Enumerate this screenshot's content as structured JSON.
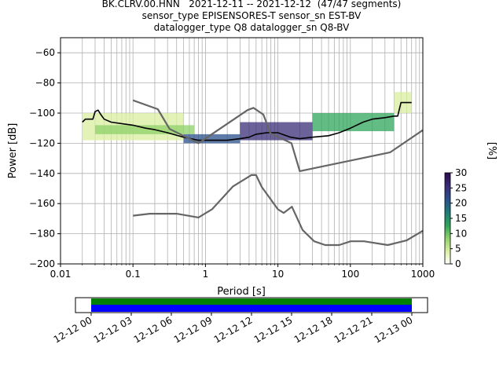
{
  "title": {
    "line1": "BK.CLRV.00.HNN   2021-12-11 -- 2021-12-12  (47/47 segments)",
    "line2": "sensor_type EPISENSORES-T sensor_sn EST-BV",
    "line3": "datalogger_type Q8 datalogger_sn Q8-BV"
  },
  "chart_data": [
    {
      "type": "heatmap",
      "xlabel": "Period [s]",
      "ylabel": "Power [dB]",
      "xscale": "log",
      "xlim": [
        0.01,
        1000
      ],
      "ylim": [
        -200,
        -50
      ],
      "xticks": [
        0.01,
        0.1,
        1,
        10,
        100,
        1000
      ],
      "xtick_labels": [
        "0.01",
        "0.1",
        "1",
        "10",
        "100",
        "1000"
      ],
      "yticks": [
        -200,
        -180,
        -160,
        -140,
        -120,
        -100,
        -80,
        -60
      ],
      "ytick_labels": [
        "−200",
        "−180",
        "−160",
        "−140",
        "−120",
        "−100",
        "−80",
        "−60"
      ],
      "grid": true,
      "colorbar": {
        "label": "[%]",
        "range": [
          0,
          30
        ],
        "ticks": [
          "0",
          "5",
          "10",
          "15",
          "20",
          "25",
          "30"
        ],
        "colormap": [
          "#ffffff",
          "#d9efa0",
          "#8fd16a",
          "#2fa55a",
          "#1e7a78",
          "#2a4f8a",
          "#3b2d78",
          "#2a0a4a"
        ]
      },
      "density_bands": [
        {
          "period": [
            0.02,
            0.5
          ],
          "power": [
            -118,
            -100
          ],
          "percent": 5
        },
        {
          "period": [
            0.03,
            0.7
          ],
          "power": [
            -114,
            -108
          ],
          "percent": 10
        },
        {
          "period": [
            0.5,
            3
          ],
          "power": [
            -120,
            -114
          ],
          "percent": 20
        },
        {
          "period": [
            3,
            30
          ],
          "power": [
            -118,
            -106
          ],
          "percent": 25
        },
        {
          "period": [
            30,
            400
          ],
          "power": [
            -112,
            -100
          ],
          "percent": 12
        },
        {
          "period": [
            400,
            700
          ],
          "power": [
            -100,
            -86
          ],
          "percent": 5
        }
      ],
      "series": [
        {
          "role": "mean-psd",
          "color": "#000000",
          "x": [
            0.02,
            0.022,
            0.025,
            0.028,
            0.03,
            0.033,
            0.036,
            0.04,
            0.05,
            0.07,
            0.1,
            0.15,
            0.2,
            0.3,
            0.5,
            0.8,
            1,
            1.5,
            2,
            3,
            4,
            5,
            7,
            10,
            15,
            20,
            30,
            50,
            70,
            100,
            150,
            200,
            300,
            400,
            450,
            500,
            600,
            700
          ],
          "y": [
            -106,
            -104,
            -104,
            -104,
            -99,
            -98,
            -101,
            -104,
            -106,
            -107,
            -108,
            -110,
            -111,
            -113,
            -116,
            -118,
            -118,
            -118,
            -118,
            -117,
            -116,
            -114,
            -113,
            -113,
            -116,
            -117,
            -116,
            -115,
            -113,
            -110,
            -106,
            -104,
            -103,
            -102,
            -102,
            -93,
            -93,
            -93
          ]
        },
        {
          "role": "high-noise-model",
          "color": "#666666",
          "x": [
            0.1,
            0.22,
            0.32,
            0.8,
            3.8,
            4.6,
            6.3,
            7.9,
            15.4,
            20,
            354.8,
            1000
          ],
          "y": [
            -91.5,
            -97.4,
            -110.5,
            -120,
            -98,
            -96.5,
            -101,
            -113.5,
            -120,
            -138.5,
            -126,
            -111.3
          ]
        },
        {
          "role": "low-noise-model",
          "color": "#666666",
          "x": [
            0.1,
            0.17,
            0.4,
            0.8,
            1.24,
            2.4,
            4.3,
            5,
            6,
            10,
            12,
            15.6,
            21.9,
            31.6,
            45,
            70,
            101,
            154,
            328,
            600,
            1000
          ],
          "y": [
            -168,
            -166.7,
            -166.7,
            -169.2,
            -163.7,
            -148.6,
            -141.1,
            -141.1,
            -149,
            -163.8,
            -166.2,
            -162.1,
            -177.5,
            -185,
            -187.5,
            -187.5,
            -185,
            -185,
            -187.5,
            -184.4,
            -178
          ]
        }
      ]
    },
    {
      "type": "bar",
      "orientation": "horizontal",
      "role": "data-coverage",
      "xlim": [
        "12-12 00",
        "12-13 00"
      ],
      "xtick_labels": [
        "12-12 00",
        "12-12 03",
        "12-12 06",
        "12-12 09",
        "12-12 12",
        "12-12 15",
        "12-12 18",
        "12-12 21",
        "12-13 00"
      ],
      "series": [
        {
          "role": "coverage-used",
          "color": "#008000",
          "start_h": 0,
          "end_h": 24
        },
        {
          "role": "coverage-total",
          "color": "#0000ff",
          "start_h": 0,
          "end_h": 24
        }
      ]
    }
  ]
}
